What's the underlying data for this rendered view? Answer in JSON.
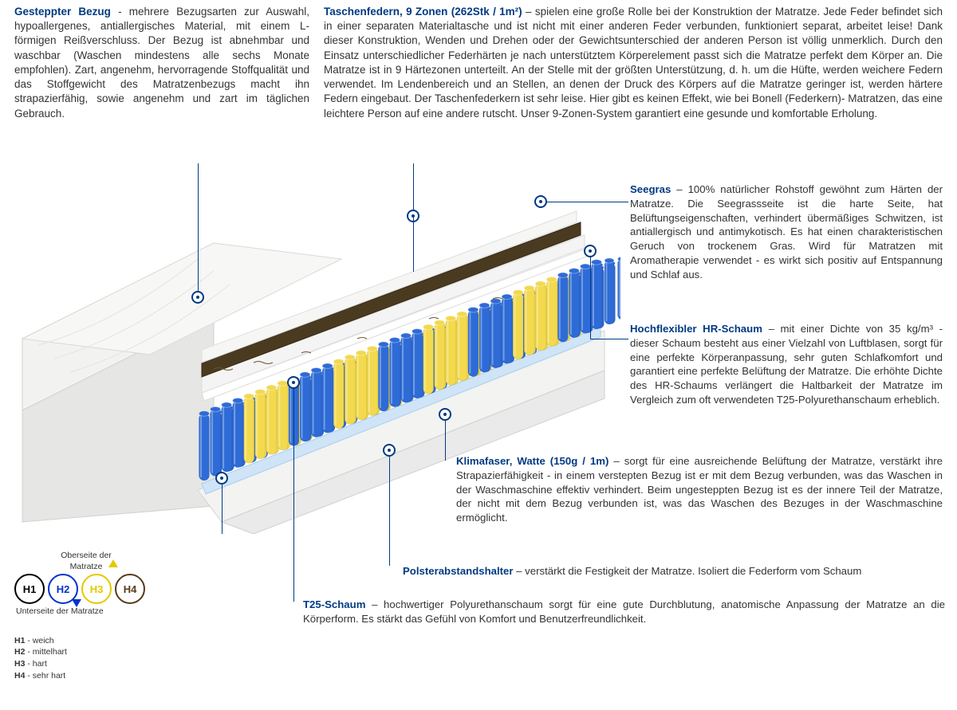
{
  "colors": {
    "accent": "#003a82",
    "text": "#333333",
    "h1_ring": "#000000",
    "h2_ring": "#0033cc",
    "h3_ring": "#e6c800",
    "h4_ring": "#5a3a1a",
    "spring_blue": "#2e6bd6",
    "spring_yellow": "#f2d94e",
    "foam_white": "#f5f5f5",
    "seagrass": "#4a3a20",
    "klima_mat": "#cfe4f7",
    "cover": "#f0f0ee",
    "frame": "#e0e0e0"
  },
  "top": {
    "left": {
      "title": "Gesteppter Bezug",
      "body": " - mehrere Bezugsarten zur Auswahl, hypoallergenes, antiallergisches Material, mit einem L-förmigen Reißverschluss. Der Bezug ist abnehmbar und waschbar (Waschen mindestens alle sechs Monate empfohlen). Zart, angenehm, hervorragende Stoffqualität und das Stoffgewicht des Matratzenbezugs macht ihn strapazierfähig, sowie angenehm und zart im täglichen Gebrauch."
    },
    "right": {
      "title": "Taschenfedern, 9 Zonen (262Stk / 1m²)",
      "body": " – spielen eine große Rolle bei der Konstruktion der Matratze. Jede Feder befindet sich in einer separaten Materialtasche und ist nicht mit einer anderen Feder verbunden, funktioniert separat, arbeitet leise! Dank dieser Konstruktion, Wenden und Drehen oder der Gewichtsunterschied der anderen Person ist völlig unmerklich. Durch den Einsatz unterschiedlicher Federhärten je nach unterstütztem Körperelement passt sich die Matratze perfekt dem Körper an. Die Matratze ist in 9 Härtezonen unterteilt. An der Stelle mit der größten Unterstützung, d. h. um die Hüfte, werden weichere Federn verwendet. Im Lendenbereich und an Stellen, an denen der Druck des Körpers auf die Matratze geringer ist, werden härtere Federn eingebaut. Der Taschenfederkern ist sehr leise. Hier gibt es keinen Effekt, wie bei Bonell (Federkern)- Matratzen, das eine leichtere Person auf eine andere rutscht. Unser 9-Zonen-System garantiert eine gesunde und komfortable Erholung."
    }
  },
  "side": {
    "seegras": {
      "title": "Seegras",
      "body": " – 100% natürlicher Rohstoff gewöhnt zum Härten der Matratze. Die Seegrassseite ist die harte Seite, hat Belüftungseigenschaften, verhindert übermäßiges Schwitzen, ist antiallergisch und antimykotisch. Es hat einen charakteristischen Geruch von trockenem Gras. Wird für Matratzen mit Aromatherapie verwendet - es wirkt sich positiv auf Entspannung und Schlaf aus."
    },
    "hr": {
      "title": "Hochflexibler HR-Schaum",
      "body": " – mit einer Dichte von 35 kg/m³ - dieser Schaum besteht aus einer Vielzahl von Luftblasen, sorgt für eine perfekte Körperanpassung, sehr guten Schlafkomfort und garantiert eine perfekte Belüftung der Matratze. Die erhöhte Dichte des HR-Schaums verlängert die Haltbarkeit der Matratze im Vergleich zum oft verwendeten T25-Polyurethanschaum erheblich."
    },
    "klima": {
      "title": "Klimafaser, Watte (150g / 1m)",
      "body": " – sorgt für eine ausreichende Belüftung der Matratze, verstärkt ihre Strapazierfähigkeit - in einem verstepten Bezug ist er mit dem Bezug verbunden, was das Waschen in der Waschmaschine effektiv verhindert. Beim ungesteppten Bezug ist es der innere Teil der Matratze, der nicht mit dem Bezug verbunden ist, was das Waschen des Bezuges in der Waschmaschine ermöglicht."
    },
    "polster": {
      "title": "Polsterabstandshalter",
      "body": " – verstärkt die Festigkeit der Matratze. Isoliert die Federform vom Schaum"
    },
    "t25": {
      "title": "T25-Schaum",
      "body": " – hochwertiger Polyurethanschaum sorgt für eine gute Durchblutung, anatomische Anpassung der Matratze an die Körperform. Es stärkt das Gefühl von Komfort und Benutzerfreundlichkeit."
    }
  },
  "legend": {
    "top_label": "Oberseite der Matratze",
    "bottom_label": "Unterseite der Matratze",
    "items": [
      {
        "code": "H1",
        "text": "weich",
        "ring": "#000000"
      },
      {
        "code": "H2",
        "text": "mittelhart",
        "ring": "#0033cc"
      },
      {
        "code": "H3",
        "text": "hart",
        "ring": "#e6c800"
      },
      {
        "code": "H4",
        "text": "sehr hart",
        "ring": "#5a3a1a"
      }
    ]
  },
  "diagram": {
    "aspect": "760x455",
    "zones_pattern": [
      "blue",
      "yellow",
      "blue",
      "yellow",
      "blue",
      "yellow",
      "blue",
      "yellow",
      "blue"
    ],
    "spring_rows": 3,
    "spring_cols_per_zone": 4
  }
}
